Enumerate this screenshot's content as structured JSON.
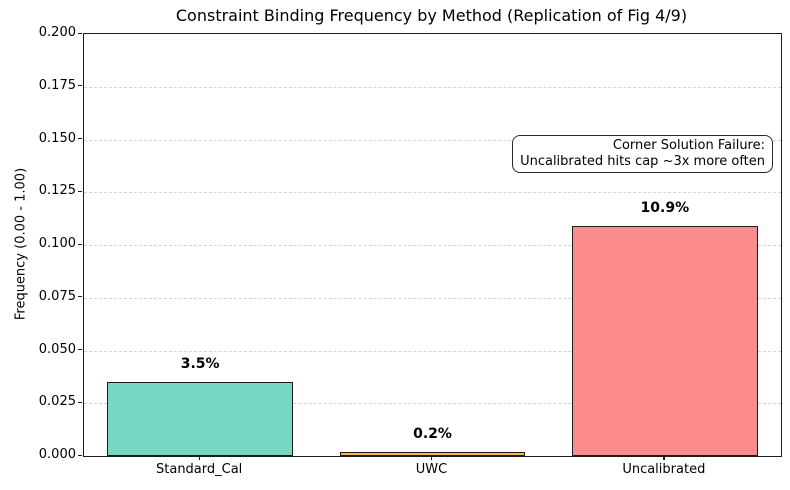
{
  "chart_data": {
    "type": "bar",
    "title": "Constraint Binding Frequency by Method (Replication of Fig 4/9)",
    "xlabel": "",
    "ylabel": "Frequency (0.00 - 1.00)",
    "categories": [
      "Standard_Cal",
      "UWC",
      "Uncalibrated"
    ],
    "values": [
      0.035,
      0.002,
      0.109
    ],
    "bar_labels": [
      "3.5%",
      "0.2%",
      "10.9%"
    ],
    "bar_colors": [
      "#76d7c4",
      "#f2b94e",
      "#fc8b8b"
    ],
    "bar_edge_color": "#1c1c1c",
    "ylim": [
      0,
      0.2
    ],
    "yticks": [
      0.0,
      0.025,
      0.05,
      0.075,
      0.1,
      0.125,
      0.15,
      0.175,
      0.2
    ],
    "ytick_labels": [
      "0.000",
      "0.025",
      "0.050",
      "0.075",
      "0.100",
      "0.125",
      "0.150",
      "0.175",
      "0.200"
    ],
    "grid": "horizontal-dashed",
    "legend": "none",
    "annotation": {
      "line1": "Corner Solution Failure:",
      "line2": "Uncalibrated hits cap ~3x more often"
    }
  }
}
